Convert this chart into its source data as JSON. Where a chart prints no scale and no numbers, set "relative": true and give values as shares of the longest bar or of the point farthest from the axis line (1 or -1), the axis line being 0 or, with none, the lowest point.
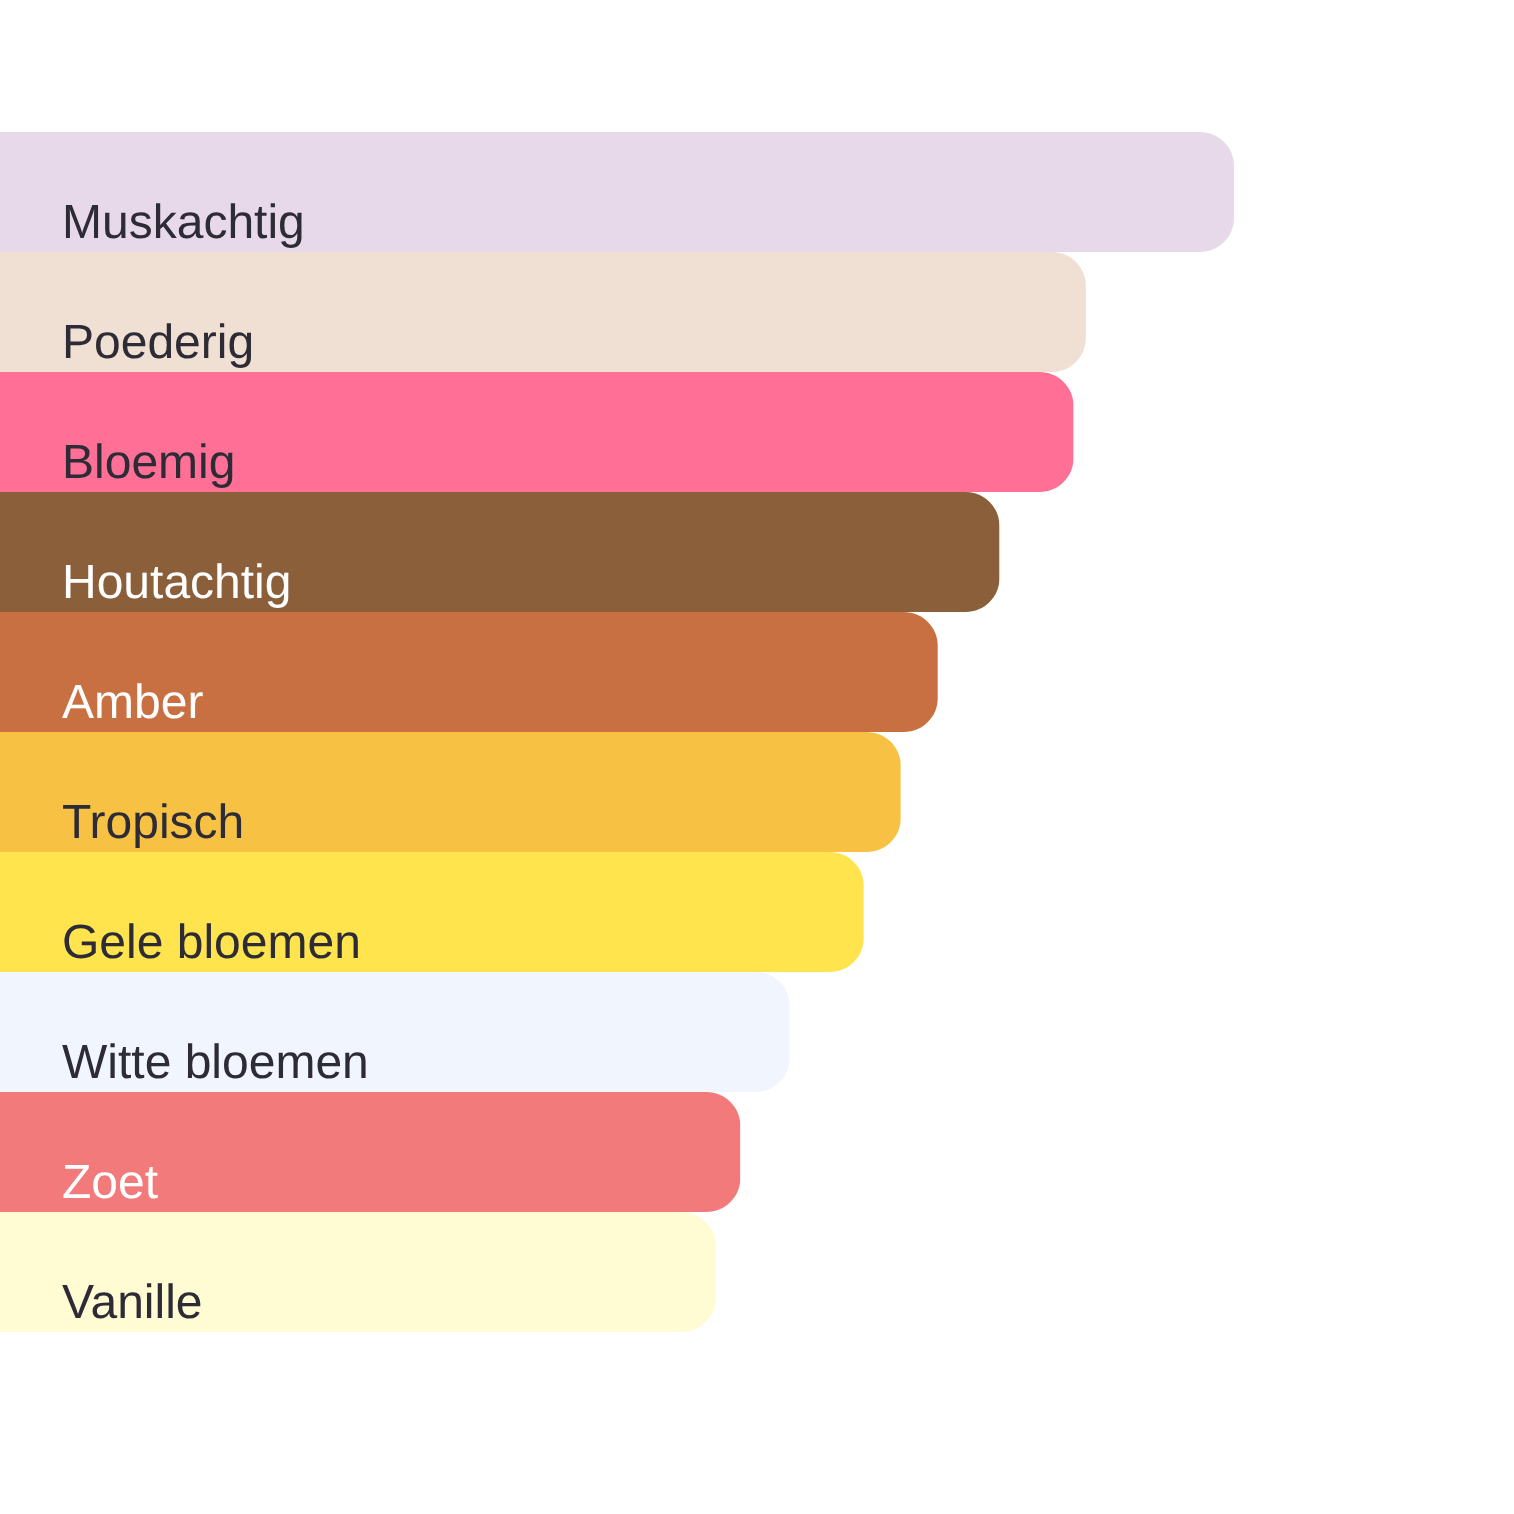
{
  "chart_data": {
    "type": "bar",
    "orientation": "horizontal",
    "relative": true,
    "categories": [
      "Muskachtig",
      "Poederig",
      "Bloemig",
      "Houtachtig",
      "Amber",
      "Tropisch",
      "Gele bloemen",
      "Witte bloemen",
      "Zoet",
      "Vanille"
    ],
    "values": [
      1,
      0.88,
      0.87,
      0.81,
      0.76,
      0.73,
      0.7,
      0.64,
      0.6,
      0.58
    ],
    "colors": [
      "#e8d9ea",
      "#f0e0d3",
      "#ff6f96",
      "#8b5f3a",
      "#c97043",
      "#f7c244",
      "#ffe44d",
      "#f1f5fd",
      "#f27a7a",
      "#fffcd4"
    ]
  }
}
